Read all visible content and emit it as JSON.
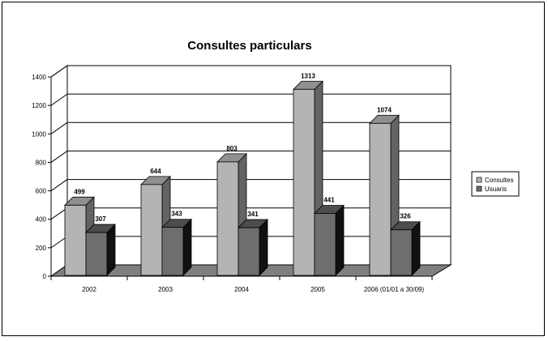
{
  "chart_data": {
    "type": "bar",
    "title": "Consultes particulars",
    "categories": [
      "2002",
      "2003",
      "2004",
      "2005",
      "2006 (01/01 a 30/09)"
    ],
    "series": [
      {
        "name": "Consultes",
        "values": [
          499,
          644,
          803,
          1313,
          1074
        ],
        "color": "#b4b4b4"
      },
      {
        "name": "Usuaris",
        "values": [
          307,
          343,
          341,
          441,
          326
        ],
        "color": "#6e6e6e"
      }
    ],
    "ylim": [
      0,
      1400
    ],
    "yticks": [
      "0",
      "200",
      "400",
      "600",
      "800",
      "1000",
      "1200",
      "1400"
    ],
    "xlabel": "",
    "ylabel": "",
    "grid": true,
    "legend_position": "right",
    "style": "3d-clustered-column"
  }
}
